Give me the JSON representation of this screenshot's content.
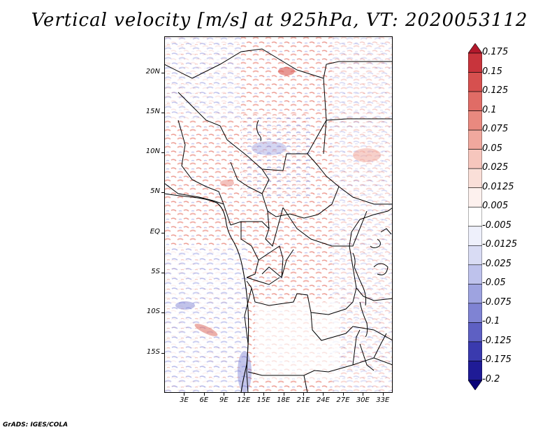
{
  "title": "Vertical velocity [m/s] at 925hPa, VT: 2020053112",
  "footer": "GrADS: IGES/COLA",
  "map": {
    "lat_labels": [
      "20N",
      "15N",
      "10N",
      "5N",
      "EQ",
      "5S",
      "10S",
      "15S"
    ],
    "lat_values": [
      20,
      15,
      10,
      5,
      0,
      -5,
      -10,
      -15
    ],
    "lon_labels": [
      "3E",
      "6E",
      "9E",
      "12E",
      "15E",
      "18E",
      "21E",
      "24E",
      "27E",
      "30E",
      "33E"
    ],
    "lon_values": [
      3,
      6,
      9,
      12,
      15,
      18,
      21,
      24,
      27,
      30,
      33
    ],
    "lat_range": [
      -20,
      24.5
    ],
    "lon_range": [
      0,
      34.5
    ]
  },
  "colorbar": {
    "labels": [
      "0.175",
      "0.15",
      "0.125",
      "0.1",
      "0.075",
      "0.05",
      "0.025",
      "0.0125",
      "0.005",
      "-0.005",
      "-0.0125",
      "-0.025",
      "-0.05",
      "-0.075",
      "-0.1",
      "-0.125",
      "-0.175",
      "-0.2"
    ],
    "colors": [
      "#b2182b",
      "#c8343c",
      "#d6504f",
      "#e06c66",
      "#e9897f",
      "#f0a89e",
      "#f6c6bd",
      "#fadfd8",
      "#fdf1ee",
      "#ffffff",
      "#eef0fb",
      "#d9dcf4",
      "#bec2ec",
      "#9ea3e0",
      "#7f83d3",
      "#5e60c3",
      "#3a3aae",
      "#1f1b96",
      "#0a0478"
    ]
  }
}
